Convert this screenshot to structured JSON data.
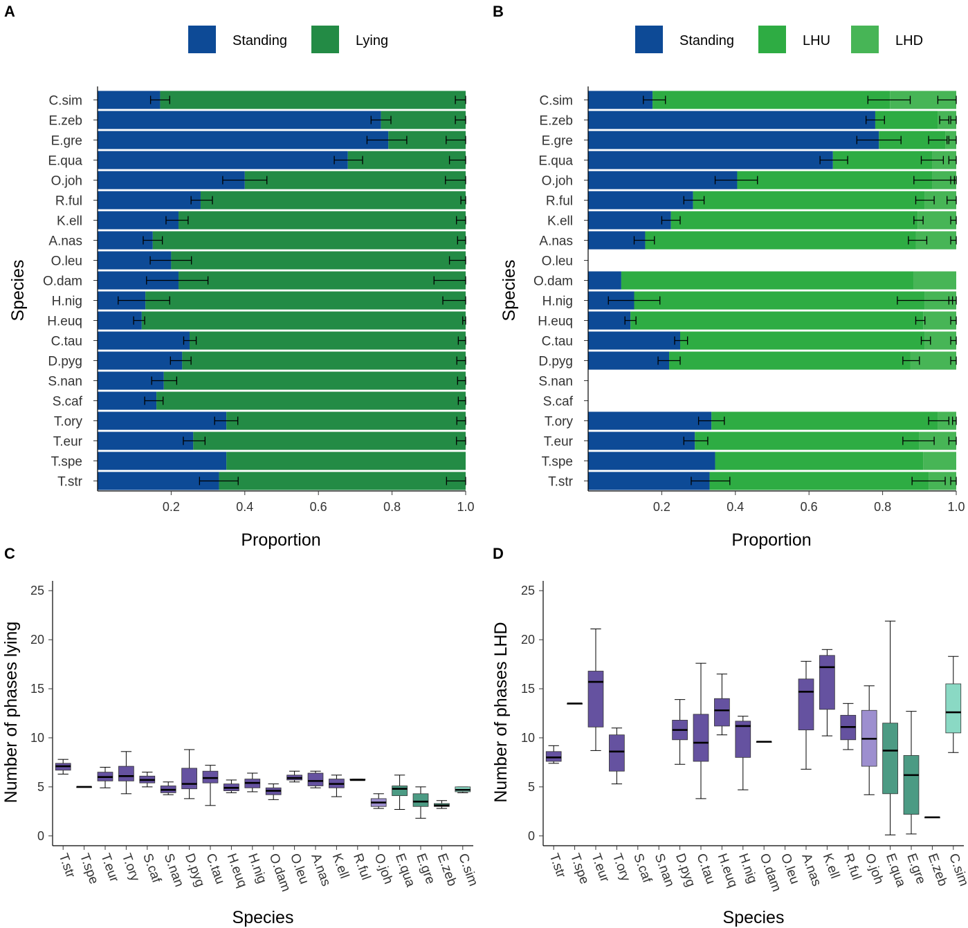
{
  "colors": {
    "standing": "#0D4A96",
    "lying": "#238B45",
    "lhu": "#2EAC43",
    "lhd": "#47B556",
    "box_purple_dark": "#6552A0",
    "box_purple_light": "#9D8FCF",
    "box_green_dark": "#4C9B84",
    "box_green_light": "#8AD9C4"
  },
  "chart_data": [
    {
      "panel": "A",
      "type": "bar",
      "orientation": "horizontal-stacked",
      "legend": [
        "Standing",
        "Lying"
      ],
      "legend_position": "top",
      "xlabel": "Proportion",
      "ylabel": "Species",
      "xlim": [
        0,
        1
      ],
      "xticks": [
        "0.2",
        "0.4",
        "0.6",
        "0.8",
        "1.0"
      ],
      "categories": [
        "C.sim",
        "E.zeb",
        "E.gre",
        "E.qua",
        "O.joh",
        "R.ful",
        "K.ell",
        "A.nas",
        "O.leu",
        "O.dam",
        "H.nig",
        "H.euq",
        "C.tau",
        "D.pyg",
        "S.nan",
        "S.caf",
        "T.ory",
        "T.eur",
        "T.spe",
        "T.str"
      ],
      "series": [
        {
          "name": "Standing",
          "values": [
            0.17,
            0.77,
            0.79,
            0.68,
            0.4,
            0.28,
            0.22,
            0.15,
            0.2,
            0.22,
            0.13,
            0.12,
            0.25,
            0.23,
            0.18,
            0.16,
            0.35,
            0.26,
            0.35,
            0.33
          ]
        },
        {
          "name": "Lying",
          "values": [
            0.83,
            0.23,
            0.21,
            0.32,
            0.6,
            0.72,
            0.78,
            0.85,
            0.8,
            0.78,
            0.87,
            0.88,
            0.75,
            0.77,
            0.82,
            0.84,
            0.65,
            0.74,
            0.65,
            0.67
          ]
        }
      ],
      "error_low": [
        0.144,
        0.743,
        0.732,
        0.643,
        0.34,
        0.254,
        0.186,
        0.124,
        0.143,
        0.133,
        0.056,
        0.098,
        0.234,
        0.198,
        0.147,
        0.128,
        0.318,
        0.233,
        null,
        0.277
      ],
      "error_high": [
        0.196,
        0.797,
        0.84,
        0.72,
        0.46,
        0.312,
        0.246,
        0.176,
        0.255,
        0.3,
        0.196,
        0.128,
        0.268,
        0.254,
        0.215,
        0.178,
        0.381,
        0.292,
        null,
        0.382
      ],
      "right_error_low": [
        0.972,
        0.972,
        0.947,
        0.956,
        0.945,
        0.987,
        0.975,
        0.978,
        0.956,
        0.914,
        0.938,
        0.992,
        0.98,
        0.976,
        0.978,
        0.98,
        0.976,
        0.975,
        null,
        0.948
      ]
    },
    {
      "panel": "B",
      "type": "bar",
      "orientation": "horizontal-stacked",
      "legend": [
        "Standing",
        "LHU",
        "LHD"
      ],
      "legend_position": "top",
      "xlabel": "Proportion",
      "ylabel": "Species",
      "xlim": [
        0,
        1
      ],
      "xticks": [
        "0.2",
        "0.4",
        "0.6",
        "0.8",
        "1.0"
      ],
      "categories": [
        "C.sim",
        "E.zeb",
        "E.gre",
        "E.qua",
        "O.joh",
        "R.ful",
        "K.ell",
        "A.nas",
        "O.leu",
        "O.dam",
        "H.nig",
        "H.euq",
        "C.tau",
        "D.pyg",
        "S.nan",
        "S.caf",
        "T.ory",
        "T.eur",
        "T.spe",
        "T.str"
      ],
      "series": [
        {
          "name": "Standing",
          "values": [
            0.175,
            0.78,
            0.79,
            0.665,
            0.405,
            0.285,
            0.225,
            0.155,
            null,
            0.09,
            0.125,
            0.115,
            0.25,
            0.22,
            null,
            null,
            0.335,
            0.29,
            0.345,
            0.33
          ]
        },
        {
          "name": "LHU",
          "values": [
            0.645,
            0.17,
            0.18,
            0.27,
            0.53,
            0.63,
            0.67,
            0.735,
            null,
            0.795,
            0.79,
            0.795,
            0.665,
            0.655,
            null,
            null,
            0.615,
            0.61,
            0.565,
            0.595
          ]
        },
        {
          "name": "LHD",
          "values": [
            0.18,
            0.05,
            0.03,
            0.065,
            0.065,
            0.085,
            0.105,
            0.11,
            null,
            0.115,
            0.085,
            0.09,
            0.085,
            0.125,
            null,
            null,
            0.05,
            0.1,
            0.09,
            0.075
          ]
        }
      ],
      "standing_error": [
        [
          0.15,
          0.21
        ],
        [
          0.755,
          0.805
        ],
        [
          0.73,
          0.85
        ],
        [
          0.63,
          0.705
        ],
        [
          0.345,
          0.46
        ],
        [
          0.26,
          0.315
        ],
        [
          0.2,
          0.25
        ],
        [
          0.125,
          0.18
        ],
        null,
        null,
        [
          0.055,
          0.195
        ],
        [
          0.1,
          0.13
        ],
        [
          0.235,
          0.27
        ],
        [
          0.19,
          0.25
        ],
        null,
        null,
        [
          0.3,
          0.37
        ],
        [
          0.26,
          0.325
        ],
        null,
        [
          0.28,
          0.385
        ]
      ],
      "lhu_error": [
        [
          0.76,
          0.875
        ],
        [
          0.955,
          0.98
        ],
        [
          0.925,
          0.975
        ],
        [
          0.905,
          0.965
        ],
        [
          0.885,
          0.995
        ],
        [
          0.89,
          0.94
        ],
        [
          0.885,
          0.91
        ],
        [
          0.87,
          0.92
        ],
        null,
        null,
        [
          0.84,
          0.99
        ],
        [
          0.89,
          0.915
        ],
        [
          0.905,
          0.93
        ],
        [
          0.855,
          0.9
        ],
        null,
        null,
        [
          0.925,
          0.98
        ],
        [
          0.855,
          0.94
        ],
        null,
        [
          0.88,
          0.97
        ]
      ],
      "lhd_error": [
        [
          0.95,
          1.0
        ],
        [
          0.985,
          1.0
        ],
        [
          0.98,
          1.0
        ],
        [
          0.98,
          1.0
        ],
        [
          0.985,
          1.0
        ],
        [
          0.975,
          1.0
        ],
        [
          0.985,
          1.0
        ],
        [
          0.985,
          1.0
        ],
        null,
        null,
        [
          0.98,
          1.0
        ],
        [
          0.985,
          1.0
        ],
        [
          0.985,
          1.0
        ],
        [
          0.985,
          1.0
        ],
        null,
        null,
        [
          0.99,
          1.0
        ],
        [
          0.98,
          1.0
        ],
        null,
        [
          0.985,
          1.0
        ]
      ]
    },
    {
      "panel": "C",
      "type": "box",
      "xlabel": "Species",
      "ylabel": "Number of phases lying",
      "ylim": [
        -1,
        26
      ],
      "yticks": [
        0,
        5,
        10,
        15,
        20,
        25
      ],
      "categories": [
        "T.str",
        "T.spe",
        "T.eur",
        "T.ory",
        "S.caf",
        "S.nan",
        "D.pyg",
        "C.tau",
        "H.euq",
        "H.nig",
        "O.dam",
        "O.leu",
        "A.nas",
        "K.ell",
        "R.ful",
        "O.joh",
        "E.qua",
        "E.gre",
        "E.zeb",
        "C.sim"
      ],
      "box_stats": [
        [
          6.3,
          6.7,
          7.1,
          7.4,
          7.8
        ],
        [
          5.0,
          5.0,
          5.0,
          5.0,
          5.0
        ],
        [
          4.9,
          5.6,
          6.0,
          6.5,
          7.0
        ],
        [
          4.3,
          5.6,
          6.1,
          7.1,
          8.6
        ],
        [
          5.0,
          5.4,
          5.7,
          6.1,
          6.5
        ],
        [
          4.2,
          4.4,
          4.7,
          5.1,
          5.5
        ],
        [
          3.8,
          4.8,
          5.3,
          6.9,
          8.8
        ],
        [
          3.1,
          5.4,
          5.9,
          6.6,
          7.2
        ],
        [
          4.4,
          4.6,
          4.9,
          5.3,
          5.7
        ],
        [
          4.5,
          4.9,
          5.4,
          5.8,
          6.4
        ],
        [
          3.7,
          4.2,
          4.6,
          4.9,
          5.3
        ],
        [
          5.5,
          5.7,
          5.9,
          6.2,
          6.6
        ],
        [
          4.9,
          5.1,
          5.6,
          6.4,
          6.6
        ],
        [
          4.0,
          4.9,
          5.3,
          5.8,
          6.2
        ],
        [
          5.7,
          5.7,
          5.7,
          5.8,
          5.8
        ],
        [
          2.8,
          3.0,
          3.4,
          3.8,
          4.3
        ],
        [
          2.7,
          4.1,
          4.8,
          5.1,
          6.2
        ],
        [
          1.8,
          3.0,
          3.5,
          4.3,
          5.0
        ],
        [
          2.8,
          3.0,
          3.1,
          3.3,
          3.6
        ],
        [
          4.4,
          4.5,
          4.7,
          5.0,
          5.0
        ]
      ],
      "box_colors": [
        "purple_dark",
        "purple_dark",
        "purple_dark",
        "purple_dark",
        "purple_dark",
        "purple_dark",
        "purple_dark",
        "purple_dark",
        "purple_dark",
        "purple_dark",
        "purple_dark",
        "purple_dark",
        "purple_dark",
        "purple_dark",
        "purple_dark",
        "purple_light",
        "green_dark",
        "green_dark",
        "green_dark",
        "green_light"
      ]
    },
    {
      "panel": "D",
      "type": "box",
      "xlabel": "Species",
      "ylabel": "Number of phases LHD",
      "ylim": [
        -1,
        26
      ],
      "yticks": [
        0,
        5,
        10,
        15,
        20,
        25
      ],
      "categories": [
        "T.str",
        "T.spe",
        "T.eur",
        "T.ory",
        "S.caf",
        "S.nan",
        "D.pyg",
        "C.tau",
        "H.euq",
        "H.nig",
        "O.dam",
        "O.leu",
        "A.nas",
        "K.ell",
        "R.ful",
        "O.joh",
        "E.qua",
        "E.gre",
        "E.zeb",
        "C.sim"
      ],
      "box_stats": [
        [
          7.4,
          7.6,
          8.0,
          8.6,
          9.2
        ],
        [
          13.5,
          13.5,
          13.5,
          13.5,
          13.5
        ],
        [
          8.7,
          11.1,
          15.7,
          16.8,
          21.1
        ],
        [
          5.3,
          6.6,
          8.6,
          10.3,
          11.0
        ],
        null,
        null,
        [
          7.3,
          9.8,
          10.8,
          11.8,
          13.9
        ],
        [
          3.8,
          7.6,
          9.5,
          12.4,
          17.6
        ],
        [
          10.3,
          11.2,
          12.8,
          14.0,
          16.5
        ],
        [
          4.7,
          8.0,
          11.2,
          11.7,
          12.2
        ],
        [
          9.6,
          9.6,
          9.6,
          9.6,
          9.6
        ],
        null,
        [
          6.8,
          10.8,
          14.7,
          16.0,
          17.8
        ],
        [
          10.2,
          12.9,
          17.2,
          18.4,
          19.0
        ],
        [
          8.8,
          9.8,
          11.1,
          12.3,
          13.5
        ],
        [
          4.2,
          7.1,
          9.9,
          12.8,
          15.3
        ],
        [
          0.1,
          4.3,
          8.7,
          11.5,
          21.9
        ],
        [
          0.2,
          2.2,
          6.2,
          8.2,
          12.7
        ],
        [
          1.9,
          1.9,
          1.9,
          1.9,
          1.9
        ],
        [
          8.5,
          10.5,
          12.6,
          15.5,
          18.3
        ]
      ],
      "box_colors": [
        "purple_dark",
        "purple_dark",
        "purple_dark",
        "purple_dark",
        null,
        null,
        "purple_dark",
        "purple_dark",
        "purple_dark",
        "purple_dark",
        "purple_dark",
        null,
        "purple_dark",
        "purple_dark",
        "purple_dark",
        "purple_light",
        "green_dark",
        "green_dark",
        "green_dark",
        "green_light"
      ]
    }
  ]
}
